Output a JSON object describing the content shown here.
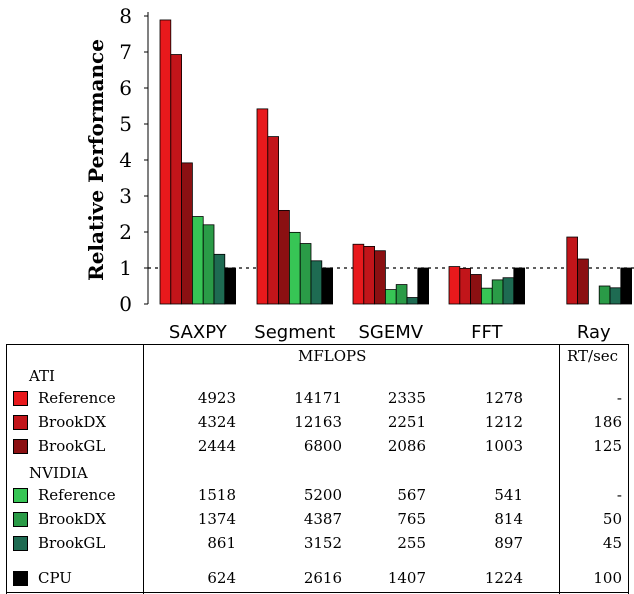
{
  "chart_data": {
    "type": "bar",
    "ylabel": "Relative Performance",
    "ylim": [
      0,
      8
    ],
    "yticks": [
      "0",
      "1",
      "2",
      "3",
      "4",
      "5",
      "6",
      "7",
      "8"
    ],
    "categories": [
      "SAXPY",
      "Segment",
      "SGEMV",
      "FFT",
      "Ray"
    ],
    "reference_line": 1,
    "series": [
      {
        "name": "ATI Reference",
        "color": "#e8191c",
        "values": [
          7.89,
          5.42,
          1.66,
          1.04,
          0
        ]
      },
      {
        "name": "ATI BrookDX",
        "color": "#c2151a",
        "values": [
          6.93,
          4.65,
          1.6,
          0.99,
          1.86
        ]
      },
      {
        "name": "ATI BrookGL",
        "color": "#8b1012",
        "values": [
          3.92,
          2.6,
          1.48,
          0.82,
          1.25
        ]
      },
      {
        "name": "NVIDIA Reference",
        "color": "#37c555",
        "values": [
          2.43,
          1.99,
          0.4,
          0.44,
          0
        ]
      },
      {
        "name": "NVIDIA BrookDX",
        "color": "#2a9b47",
        "values": [
          2.2,
          1.68,
          0.54,
          0.67,
          0.5
        ]
      },
      {
        "name": "NVIDIA BrookGL",
        "color": "#1e6b52",
        "values": [
          1.38,
          1.2,
          0.18,
          0.73,
          0.45
        ]
      },
      {
        "name": "CPU",
        "color": "#000000",
        "values": [
          1,
          1,
          1,
          1,
          1
        ]
      }
    ]
  },
  "table": {
    "header_mflops": "MFLOPS",
    "header_rt": "RT/sec",
    "groups": [
      {
        "name": "ATI",
        "rows": [
          {
            "label": "Reference",
            "color": "#e8191c",
            "values": [
              "4923",
              "14171",
              "2335",
              "1278",
              "-"
            ]
          },
          {
            "label": "BrookDX",
            "color": "#c2151a",
            "values": [
              "4324",
              "12163",
              "2251",
              "1212",
              "186"
            ]
          },
          {
            "label": "BrookGL",
            "color": "#8b1012",
            "values": [
              "2444",
              "6800",
              "2086",
              "1003",
              "125"
            ]
          }
        ]
      },
      {
        "name": "NVIDIA",
        "rows": [
          {
            "label": "Reference",
            "color": "#37c555",
            "values": [
              "1518",
              "5200",
              "567",
              "541",
              "-"
            ]
          },
          {
            "label": "BrookDX",
            "color": "#2a9b47",
            "values": [
              "1374",
              "4387",
              "765",
              "814",
              "50"
            ]
          },
          {
            "label": "BrookGL",
            "color": "#1e6b52",
            "values": [
              "861",
              "3152",
              "255",
              "897",
              "45"
            ]
          }
        ]
      }
    ],
    "cpu": {
      "label": "CPU",
      "color": "#000000",
      "values": [
        "624",
        "2616",
        "1407",
        "1224",
        "100"
      ]
    }
  }
}
